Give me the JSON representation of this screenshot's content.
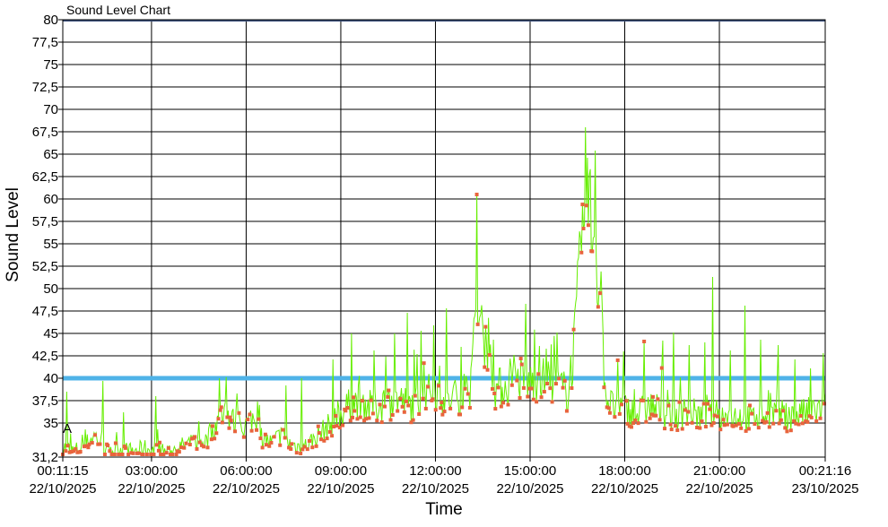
{
  "chart_data": {
    "type": "line",
    "title": "Sound Level Chart",
    "xlabel": "Time",
    "ylabel": "Sound Level",
    "ylim": [
      31.2,
      80
    ],
    "y_ticks": [
      "31,2",
      "35",
      "37,5",
      "40",
      "42,5",
      "45",
      "47,5",
      "50",
      "52,5",
      "55",
      "57,5",
      "60",
      "62,5",
      "65",
      "67,5",
      "70",
      "72,5",
      "75",
      "77,5",
      "80"
    ],
    "x_range_hours": [
      0.1875,
      24.3544
    ],
    "x_ticks": [
      {
        "hour": 0.1875,
        "time": "00:11:15",
        "date": "22/10/2025"
      },
      {
        "hour": 3,
        "time": "03:00:00",
        "date": "22/10/2025"
      },
      {
        "hour": 6,
        "time": "06:00:00",
        "date": "22/10/2025"
      },
      {
        "hour": 9,
        "time": "09:00:00",
        "date": "22/10/2025"
      },
      {
        "hour": 12,
        "time": "12:00:00",
        "date": "22/10/2025"
      },
      {
        "hour": 15,
        "time": "15:00:00",
        "date": "22/10/2025"
      },
      {
        "hour": 18,
        "time": "18:00:00",
        "date": "22/10/2025"
      },
      {
        "hour": 21,
        "time": "21:00:00",
        "date": "22/10/2025"
      },
      {
        "hour": 24.3544,
        "time": "00:21:16",
        "date": "23/10/2025"
      }
    ],
    "grid": true,
    "threshold": {
      "value": 40,
      "color": "#4fb3e8"
    },
    "annotation": "A",
    "series": [
      {
        "color": "#66ee00",
        "marker_color": "#e8643c",
        "points": [
          [
            0.19,
            32.5
          ],
          [
            0.5,
            31.9
          ],
          [
            0.8,
            32.4
          ],
          [
            1.2,
            33.8
          ],
          [
            1.6,
            31.8
          ],
          [
            2.0,
            32.2
          ],
          [
            2.4,
            31.9
          ],
          [
            2.8,
            32.3
          ],
          [
            3.2,
            31.8
          ],
          [
            3.6,
            32.0
          ],
          [
            4.0,
            32.6
          ],
          [
            4.4,
            33.0
          ],
          [
            4.8,
            33.2
          ],
          [
            5.0,
            34.8
          ],
          [
            5.3,
            36.5
          ],
          [
            5.6,
            35.4
          ],
          [
            5.9,
            34.6
          ],
          [
            6.2,
            35.8
          ],
          [
            6.5,
            33.5
          ],
          [
            6.8,
            32.9
          ],
          [
            7.1,
            33.8
          ],
          [
            7.4,
            32.7
          ],
          [
            7.8,
            32.4
          ],
          [
            8.1,
            33.2
          ],
          [
            8.5,
            34.5
          ],
          [
            8.8,
            35.4
          ],
          [
            9.2,
            37.0
          ],
          [
            9.6,
            37.8
          ],
          [
            10.0,
            36.8
          ],
          [
            10.4,
            37.3
          ],
          [
            10.8,
            37.9
          ],
          [
            11.2,
            37.1
          ],
          [
            11.6,
            38.3
          ],
          [
            12.0,
            38.9
          ],
          [
            12.4,
            37.6
          ],
          [
            12.8,
            38.4
          ],
          [
            13.1,
            39.2
          ],
          [
            13.3,
            47.0
          ],
          [
            13.5,
            45.2
          ],
          [
            13.7,
            44.4
          ],
          [
            13.9,
            39.0
          ],
          [
            14.3,
            39.5
          ],
          [
            14.7,
            40.2
          ],
          [
            15.0,
            39.7
          ],
          [
            15.3,
            40.3
          ],
          [
            15.7,
            39.9
          ],
          [
            16.0,
            39.1
          ],
          [
            16.2,
            38.6
          ],
          [
            16.4,
            44.0
          ],
          [
            16.6,
            53.5
          ],
          [
            16.8,
            60.5
          ],
          [
            17.0,
            57.4
          ],
          [
            17.2,
            50.8
          ],
          [
            17.4,
            38.5
          ],
          [
            17.6,
            37.0
          ],
          [
            18.0,
            36.8
          ],
          [
            18.4,
            36.2
          ],
          [
            18.8,
            37.1
          ],
          [
            19.2,
            36.4
          ],
          [
            19.6,
            35.8
          ],
          [
            20.0,
            36.6
          ],
          [
            20.4,
            35.9
          ],
          [
            20.8,
            36.3
          ],
          [
            21.2,
            35.7
          ],
          [
            21.6,
            36.1
          ],
          [
            22.0,
            35.6
          ],
          [
            22.4,
            36.0
          ],
          [
            22.8,
            36.4
          ],
          [
            23.2,
            35.8
          ],
          [
            23.6,
            36.2
          ],
          [
            24.0,
            36.5
          ],
          [
            24.35,
            36.9
          ]
        ],
        "spikes": [
          [
            0.3,
            38.5
          ],
          [
            1.45,
            39.7
          ],
          [
            2.1,
            36.2
          ],
          [
            3.15,
            38.0
          ],
          [
            4.5,
            35.2
          ],
          [
            5.15,
            40.0
          ],
          [
            5.7,
            38.3
          ],
          [
            6.35,
            37.4
          ],
          [
            7.25,
            39.2
          ],
          [
            7.75,
            40.0
          ],
          [
            8.75,
            42.1
          ],
          [
            9.35,
            45.0
          ],
          [
            10.05,
            43.1
          ],
          [
            10.7,
            45.0
          ],
          [
            11.1,
            47.3
          ],
          [
            11.55,
            45.3
          ],
          [
            11.95,
            45.9
          ],
          [
            12.35,
            47.8
          ],
          [
            12.8,
            43.5
          ],
          [
            13.3,
            60.5
          ],
          [
            13.85,
            44.3
          ],
          [
            14.35,
            42.2
          ],
          [
            14.85,
            48.3
          ],
          [
            15.3,
            43.6
          ],
          [
            15.85,
            45.1
          ],
          [
            16.75,
            68.0
          ],
          [
            17.05,
            65.4
          ],
          [
            17.95,
            43.0
          ],
          [
            18.6,
            44.1
          ],
          [
            19.2,
            44.2
          ],
          [
            19.55,
            45.1
          ],
          [
            20.05,
            43.7
          ],
          [
            20.55,
            44.0
          ],
          [
            20.8,
            51.3
          ],
          [
            21.35,
            43.1
          ],
          [
            21.8,
            48.1
          ],
          [
            22.3,
            44.3
          ],
          [
            22.85,
            43.7
          ],
          [
            23.4,
            42.1
          ],
          [
            23.9,
            41.1
          ],
          [
            24.3,
            42.8
          ]
        ]
      }
    ]
  }
}
